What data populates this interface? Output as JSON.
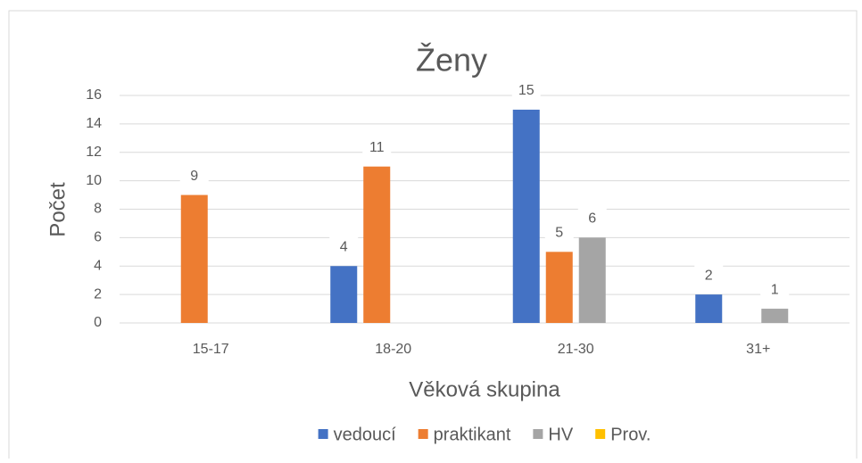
{
  "chart_data": {
    "type": "bar",
    "title": "Ženy",
    "x_label": "Věková skupina",
    "y_label": "Počet",
    "categories": [
      "15-17",
      "18-20",
      "21-30",
      "31+"
    ],
    "series": [
      {
        "name": "vedoucí",
        "color": "#4472c4",
        "values": [
          null,
          4,
          15,
          2
        ]
      },
      {
        "name": "praktikant",
        "color": "#ed7d31",
        "values": [
          9,
          11,
          5,
          null
        ]
      },
      {
        "name": "HV",
        "color": "#a5a5a5",
        "values": [
          null,
          null,
          6,
          1
        ]
      },
      {
        "name": "Prov.",
        "color": "#ffc000",
        "values": [
          null,
          null,
          null,
          null
        ]
      }
    ],
    "ylim": [
      0,
      16
    ],
    "yticks": [
      0,
      2,
      4,
      6,
      8,
      10,
      12,
      14,
      16
    ],
    "grid": true,
    "legend": "bottom"
  }
}
